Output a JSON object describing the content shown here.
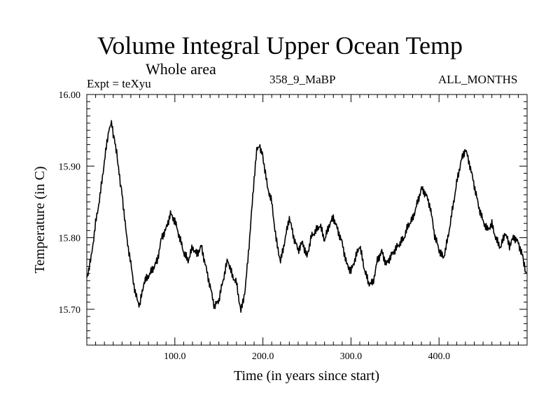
{
  "chart_data": {
    "type": "line",
    "title": "Volume Integral Upper Ocean Temp",
    "subtitle": "Whole area",
    "labels": {
      "expt": "Expt = teXyu",
      "case": "358_9_MaBP",
      "months": "ALL_MONTHS"
    },
    "xlabel": "Time (in years since start)",
    "ylabel": "Temperature (in C)",
    "xlim": [
      0,
      500
    ],
    "ylim": [
      15.65,
      16.0
    ],
    "x_ticks": [
      100,
      200,
      300,
      400
    ],
    "x_tick_labels": [
      "100.0",
      "200.0",
      "300.0",
      "400.0"
    ],
    "y_ticks": [
      15.7,
      15.8,
      15.9,
      16.0
    ],
    "y_tick_labels": [
      "15.70",
      "15.80",
      "15.90",
      "16.00"
    ],
    "grid": false,
    "series": [
      {
        "color": "#000000",
        "x": [
          0,
          5,
          10,
          15,
          20,
          25,
          28,
          32,
          36,
          40,
          45,
          50,
          55,
          60,
          65,
          70,
          75,
          80,
          85,
          90,
          95,
          100,
          105,
          110,
          115,
          120,
          125,
          130,
          135,
          140,
          145,
          150,
          155,
          160,
          165,
          170,
          175,
          180,
          185,
          190,
          193,
          196,
          200,
          205,
          210,
          215,
          220,
          225,
          230,
          235,
          240,
          245,
          250,
          255,
          260,
          265,
          270,
          275,
          280,
          285,
          290,
          295,
          300,
          305,
          310,
          315,
          320,
          325,
          330,
          335,
          340,
          345,
          350,
          355,
          360,
          365,
          370,
          375,
          380,
          385,
          390,
          395,
          400,
          405,
          410,
          415,
          420,
          425,
          430,
          435,
          440,
          445,
          450,
          455,
          460,
          465,
          470,
          475,
          480,
          485,
          490,
          495,
          499
        ],
        "y": [
          15.74,
          15.77,
          15.82,
          15.86,
          15.91,
          15.955,
          15.965,
          15.93,
          15.9,
          15.86,
          15.8,
          15.76,
          15.72,
          15.705,
          15.74,
          15.75,
          15.76,
          15.77,
          15.8,
          15.81,
          15.83,
          15.82,
          15.8,
          15.78,
          15.77,
          15.79,
          15.78,
          15.79,
          15.76,
          15.73,
          15.7,
          15.71,
          15.74,
          15.77,
          15.75,
          15.74,
          15.7,
          15.73,
          15.8,
          15.88,
          15.925,
          15.93,
          15.91,
          15.87,
          15.85,
          15.8,
          15.77,
          15.8,
          15.83,
          15.8,
          15.78,
          15.79,
          15.77,
          15.8,
          15.81,
          15.82,
          15.8,
          15.82,
          15.83,
          15.81,
          15.79,
          15.76,
          15.75,
          15.77,
          15.79,
          15.76,
          15.74,
          15.74,
          15.77,
          15.78,
          15.76,
          15.77,
          15.78,
          15.79,
          15.8,
          15.82,
          15.83,
          15.85,
          15.87,
          15.86,
          15.84,
          15.8,
          15.78,
          15.77,
          15.8,
          15.84,
          15.88,
          15.91,
          15.925,
          15.9,
          15.87,
          15.84,
          15.82,
          15.81,
          15.82,
          15.8,
          15.79,
          15.81,
          15.79,
          15.8,
          15.79,
          15.77,
          15.75
        ]
      }
    ]
  }
}
